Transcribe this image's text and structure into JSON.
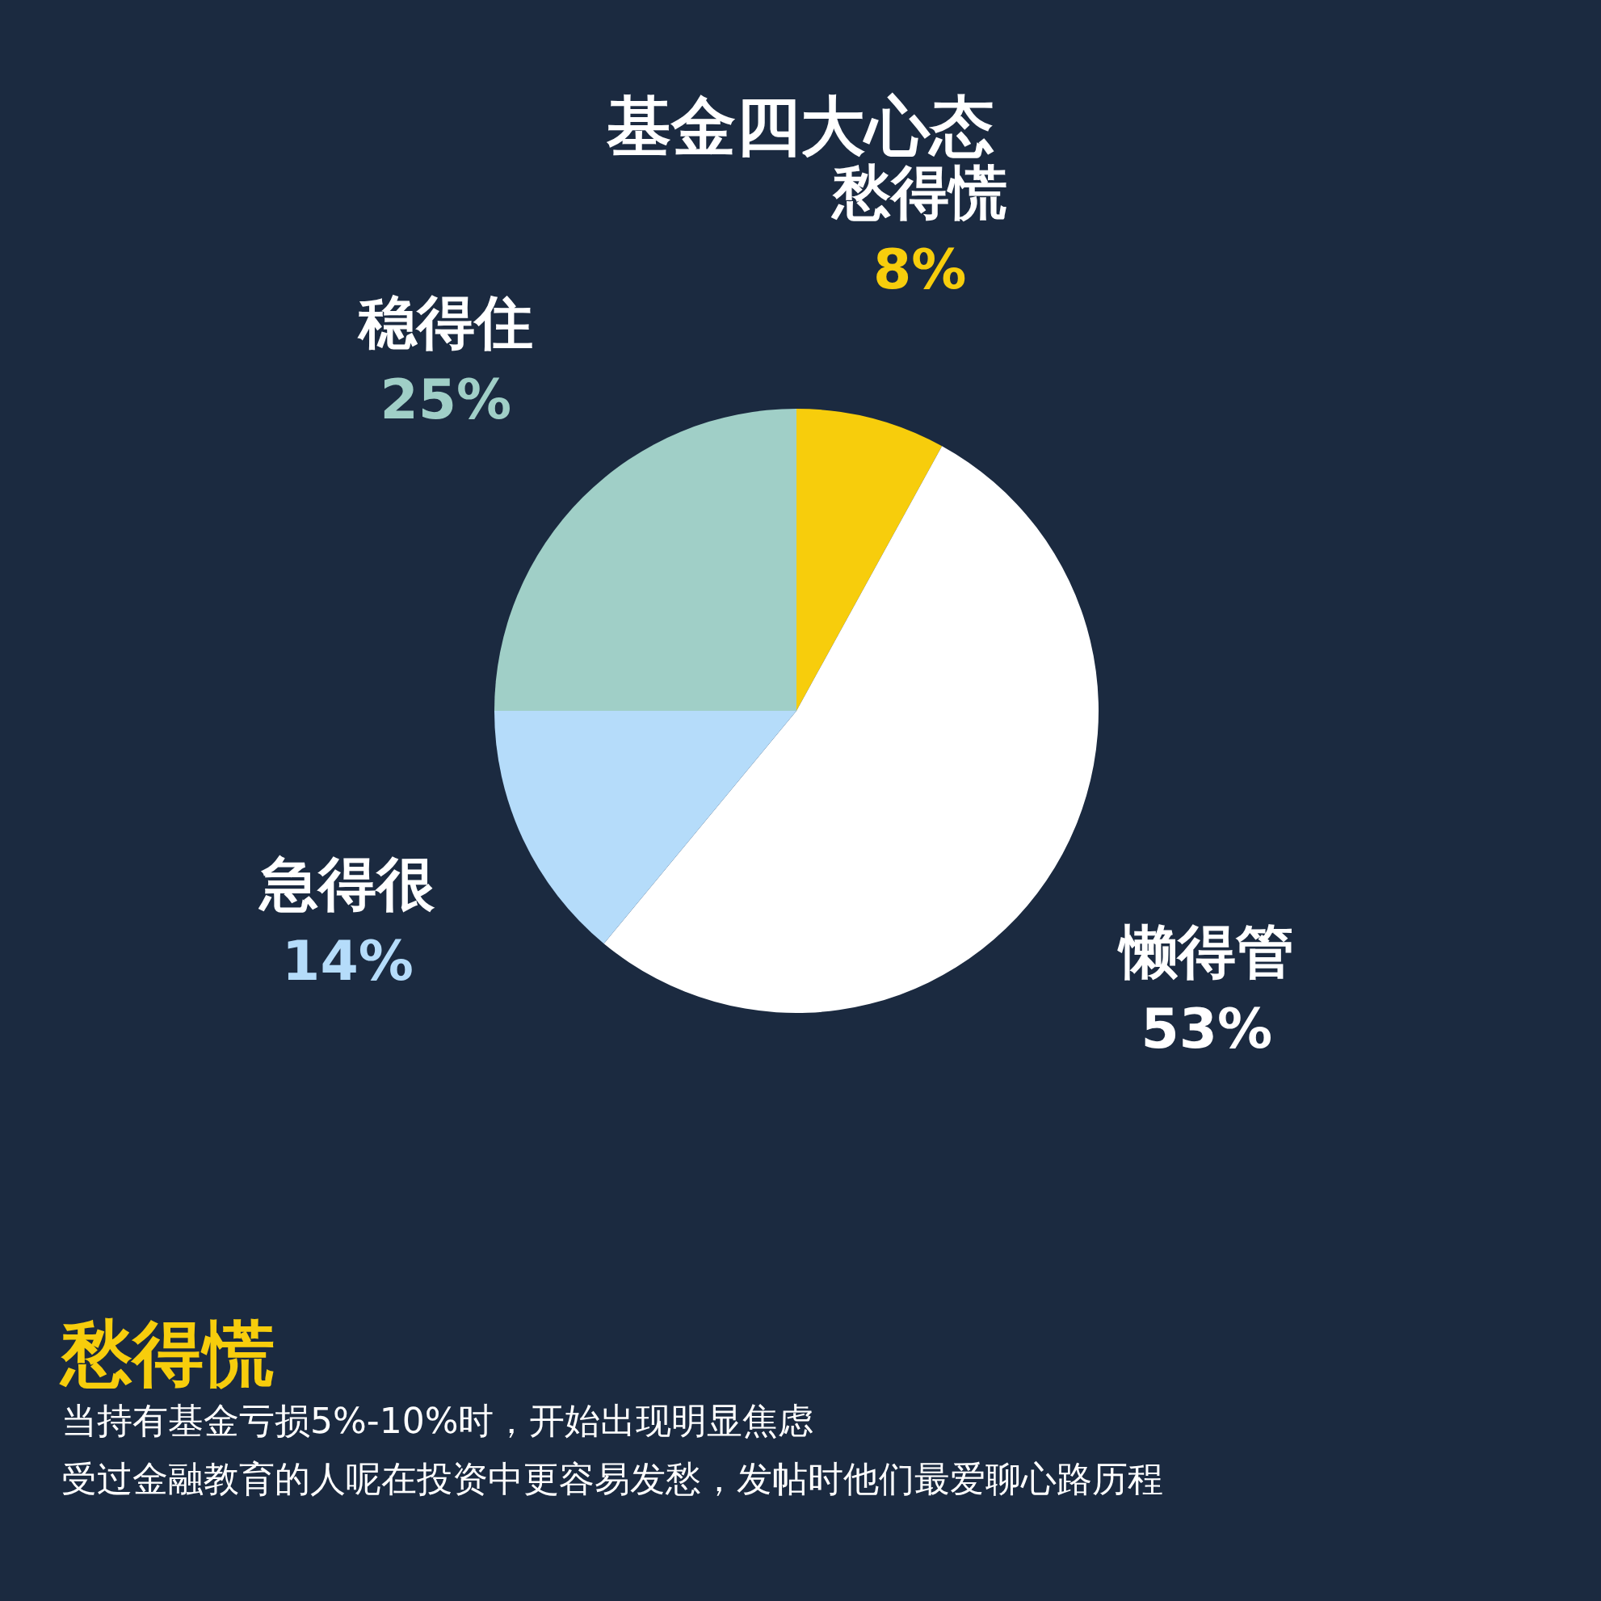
{
  "chart_data": {
    "type": "pie",
    "title": "基金四大心态",
    "categories": [
      "愁得慌",
      "懒得管",
      "急得很",
      "稳得住"
    ],
    "values": [
      8,
      53,
      14,
      25
    ],
    "value_labels": [
      "8%",
      "53%",
      "14%",
      "25%"
    ],
    "colors": [
      "#f7cd0c",
      "#ffffff",
      "#b5dcfa",
      "#a0cfc7"
    ],
    "legend": false,
    "annotations": [
      "愁得慌",
      "当持有基金亏损5%-10%时，开始出现明显焦虑",
      "受过金融教育的人呢在投资中更容易发愁，发帖时他们最爱聊心路历程"
    ]
  }
}
